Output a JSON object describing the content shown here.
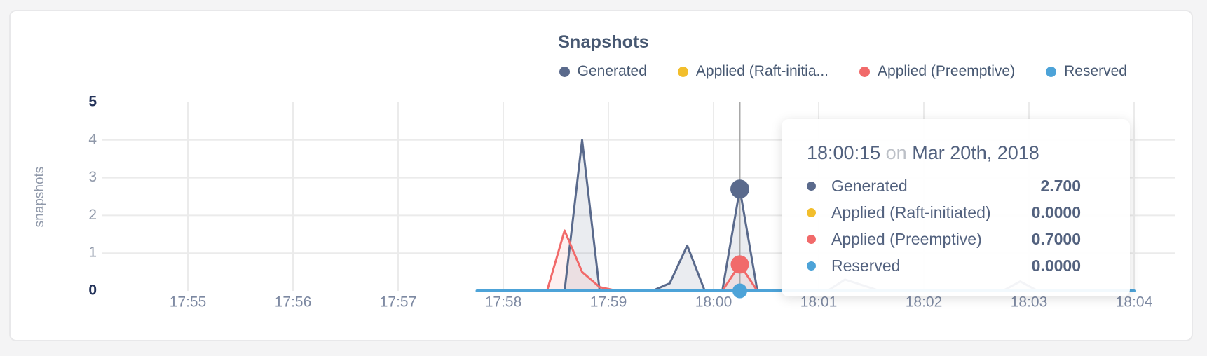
{
  "card": {
    "background": "#ffffff",
    "page_background": "#f4f4f5"
  },
  "chart_data": {
    "type": "area",
    "title": "Snapshots",
    "ylabel": "snapshots",
    "xlabel": "",
    "ylim": [
      0,
      5
    ],
    "y_ticks": [
      "0",
      "1",
      "2",
      "3",
      "4",
      "5"
    ],
    "x_ticks": [
      "17:55",
      "17:56",
      "17:57",
      "17:58",
      "17:59",
      "18:00",
      "18:01",
      "18:02",
      "18:03",
      "18:04"
    ],
    "grid": true,
    "legend_position": "top-right",
    "colors": {
      "generated": "#5a6a8c",
      "applied_raft": "#f2be2c",
      "applied_preemptive": "#f16a6a",
      "reserved": "#4da3d8",
      "text": "#475872",
      "tick_regular": "#8f98a9",
      "tick_bold": "#24335a",
      "x_tick": "#7c88a1",
      "gridline": "#ebebeb",
      "crosshair": "#a8a8a8"
    },
    "legend": [
      {
        "label": "Generated",
        "color": "#5a6a8c"
      },
      {
        "label": "Applied (Raft-initia...",
        "color": "#f2be2c"
      },
      {
        "label": "Applied (Preemptive)",
        "color": "#f16a6a"
      },
      {
        "label": "Reserved",
        "color": "#4da3d8"
      }
    ],
    "series": [
      {
        "name": "Generated",
        "color": "#5a6a8c",
        "fill": "rgba(90,106,140,0.13)",
        "line_width": 3,
        "points": [
          [
            "17:57:45",
            0
          ],
          [
            "17:58:35",
            0
          ],
          [
            "17:58:45",
            4.0
          ],
          [
            "17:58:55",
            0
          ],
          [
            "17:59:25",
            0
          ],
          [
            "17:59:35",
            0.2
          ],
          [
            "17:59:45",
            1.2
          ],
          [
            "17:59:55",
            0
          ],
          [
            "18:00:05",
            0
          ],
          [
            "18:00:15",
            2.7
          ],
          [
            "18:00:25",
            0
          ],
          [
            "18:01:05",
            0
          ],
          [
            "18:01:15",
            0.3
          ],
          [
            "18:01:25",
            0.15
          ],
          [
            "18:01:35",
            0
          ],
          [
            "18:02:45",
            0
          ],
          [
            "18:02:55",
            0.25
          ],
          [
            "18:03:05",
            0
          ],
          [
            "18:04:00",
            0
          ]
        ]
      },
      {
        "name": "Applied (Raft-initiated)",
        "color": "#f2be2c",
        "fill": "none",
        "line_width": 3,
        "points": [
          [
            "17:57:45",
            0
          ],
          [
            "18:04:00",
            0
          ]
        ]
      },
      {
        "name": "Applied (Preemptive)",
        "color": "#f16a6a",
        "fill": "rgba(241,106,106,0.10)",
        "line_width": 3,
        "points": [
          [
            "17:57:45",
            0
          ],
          [
            "17:58:25",
            0
          ],
          [
            "17:58:35",
            1.6
          ],
          [
            "17:58:45",
            0.5
          ],
          [
            "17:58:55",
            0.1
          ],
          [
            "17:59:05",
            0
          ],
          [
            "18:00:05",
            0
          ],
          [
            "18:00:15",
            0.7
          ],
          [
            "18:00:25",
            0
          ],
          [
            "18:04:00",
            0
          ]
        ]
      },
      {
        "name": "Reserved",
        "color": "#4da3d8",
        "fill": "none",
        "line_width": 4,
        "points": [
          [
            "17:57:45",
            0
          ],
          [
            "18:04:00",
            0
          ]
        ]
      }
    ],
    "highlight": {
      "time": "18:00:15",
      "dots": [
        {
          "series": "Applied (Raft-initiated)",
          "value": 0,
          "color": "#f2be2c",
          "radius": 10
        },
        {
          "series": "Applied (Preemptive)",
          "value": 0.7,
          "color": "#f16a6a",
          "radius": 13
        },
        {
          "series": "Generated",
          "value": 2.7,
          "color": "#5a6a8c",
          "radius": 13.5
        },
        {
          "series": "Reserved",
          "value": 0,
          "color": "#4da3d8",
          "radius": 10.5
        }
      ]
    }
  },
  "tooltip": {
    "time": "18:00:15",
    "conjunction": "on",
    "date": "Mar 20th, 2018",
    "rows": [
      {
        "label": "Generated",
        "value": "2.700",
        "color": "#5a6a8c"
      },
      {
        "label": "Applied (Raft-initiated)",
        "value": "0.0000",
        "color": "#f2be2c"
      },
      {
        "label": "Applied (Preemptive)",
        "value": "0.7000",
        "color": "#f16a6a"
      },
      {
        "label": "Reserved",
        "value": "0.0000",
        "color": "#4da3d8"
      }
    ]
  }
}
